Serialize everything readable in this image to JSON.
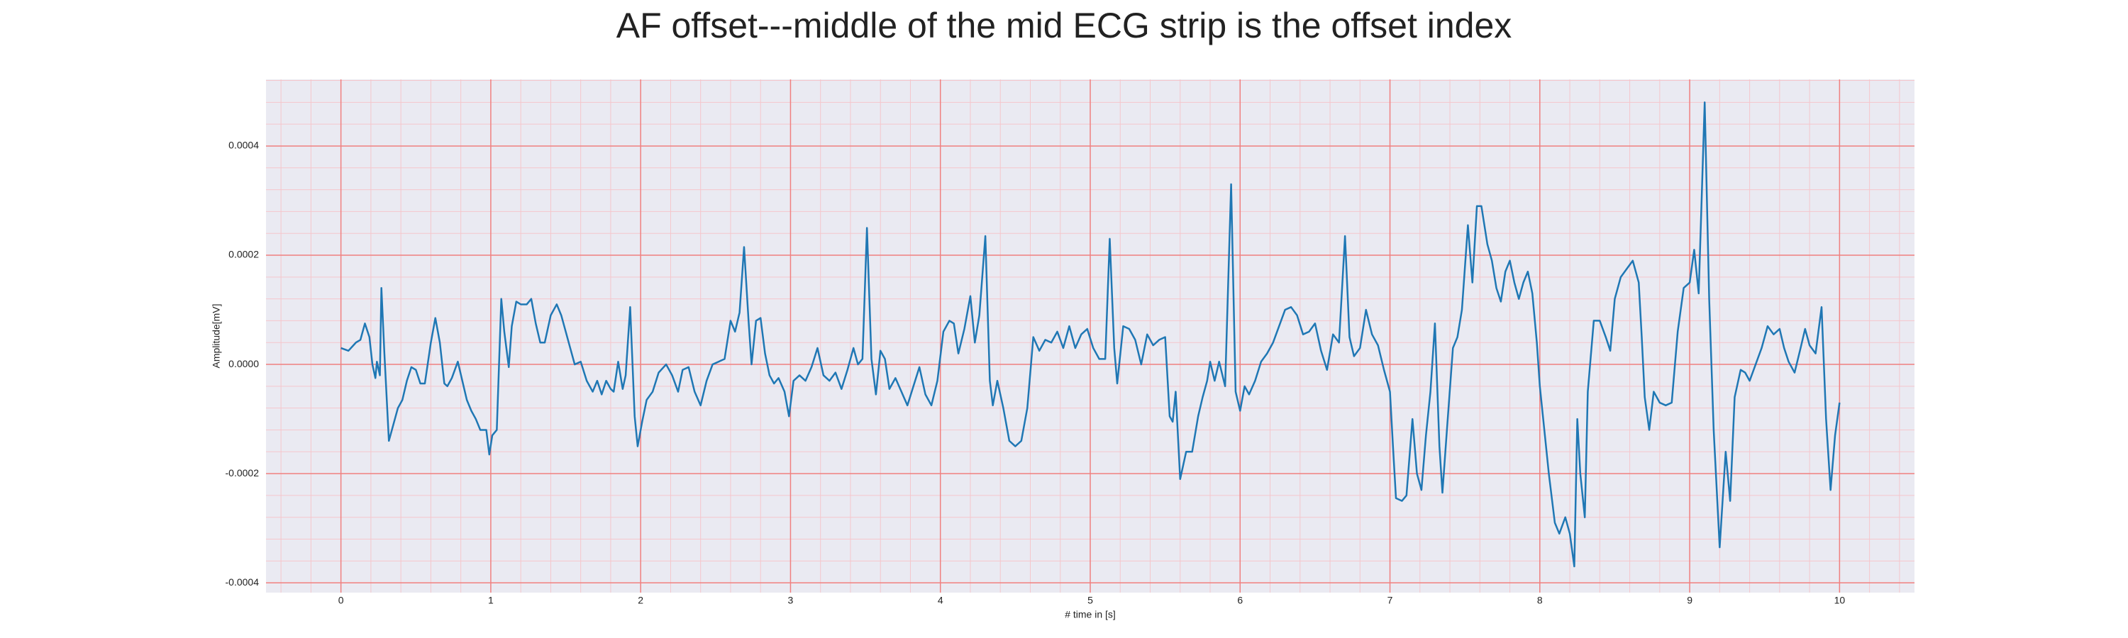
{
  "chart_data": {
    "type": "line",
    "title": "AF offset---middle of the mid ECG strip is the offset index",
    "xlabel": "# time in [s]",
    "ylabel": "Amplitude[mV]",
    "color": "#1f77b4",
    "background": "#eaeaf2",
    "grid": true,
    "grid_color": "#f08080",
    "minor_grid": true,
    "minor_grid_color": "#f5c6cc",
    "xlim": [
      -0.5,
      10.5
    ],
    "ylim": [
      -0.000418,
      0.000522
    ],
    "xticks": [
      0,
      1,
      2,
      3,
      4,
      5,
      6,
      7,
      8,
      9,
      10
    ],
    "yticks": [
      -0.0004,
      -0.0002,
      {
        "value": 0,
        "label": "0.0000"
      },
      0.0002,
      0.0004
    ],
    "x": [
      0.0,
      0.05,
      0.1,
      0.13,
      0.16,
      0.19,
      0.21,
      0.23,
      0.24,
      0.26,
      0.27,
      0.29,
      0.32,
      0.35,
      0.38,
      0.41,
      0.44,
      0.47,
      0.5,
      0.53,
      0.56,
      0.6,
      0.63,
      0.66,
      0.69,
      0.71,
      0.74,
      0.78,
      0.81,
      0.84,
      0.87,
      0.9,
      0.93,
      0.97,
      0.99,
      1.01,
      1.04,
      1.07,
      1.09,
      1.12,
      1.14,
      1.17,
      1.2,
      1.24,
      1.27,
      1.3,
      1.33,
      1.36,
      1.4,
      1.44,
      1.47,
      1.5,
      1.53,
      1.56,
      1.6,
      1.64,
      1.68,
      1.71,
      1.74,
      1.77,
      1.8,
      1.82,
      1.85,
      1.88,
      1.9,
      1.93,
      1.96,
      1.98,
      2.01,
      2.04,
      2.08,
      2.12,
      2.17,
      2.21,
      2.25,
      2.28,
      2.32,
      2.36,
      2.4,
      2.44,
      2.48,
      2.52,
      2.56,
      2.6,
      2.63,
      2.66,
      2.69,
      2.72,
      2.74,
      2.77,
      2.8,
      2.83,
      2.86,
      2.89,
      2.92,
      2.96,
      2.99,
      3.02,
      3.06,
      3.1,
      3.14,
      3.18,
      3.22,
      3.26,
      3.3,
      3.34,
      3.38,
      3.42,
      3.45,
      3.48,
      3.51,
      3.54,
      3.57,
      3.6,
      3.63,
      3.66,
      3.7,
      3.74,
      3.78,
      3.82,
      3.86,
      3.9,
      3.94,
      3.98,
      4.02,
      4.06,
      4.09,
      4.12,
      4.16,
      4.2,
      4.23,
      4.26,
      4.3,
      4.33,
      4.35,
      4.38,
      4.42,
      4.46,
      4.5,
      4.54,
      4.58,
      4.62,
      4.66,
      4.7,
      4.74,
      4.78,
      4.82,
      4.86,
      4.9,
      4.94,
      4.98,
      5.02,
      5.06,
      5.1,
      5.13,
      5.16,
      5.18,
      5.22,
      5.26,
      5.3,
      5.34,
      5.38,
      5.42,
      5.46,
      5.5,
      5.53,
      5.55,
      5.57,
      5.6,
      5.64,
      5.68,
      5.72,
      5.75,
      5.78,
      5.8,
      5.83,
      5.86,
      5.9,
      5.94,
      5.97,
      6.0,
      6.03,
      6.06,
      6.1,
      6.14,
      6.18,
      6.22,
      6.26,
      6.3,
      6.34,
      6.38,
      6.42,
      6.46,
      6.5,
      6.54,
      6.58,
      6.62,
      6.66,
      6.7,
      6.73,
      6.76,
      6.8,
      6.84,
      6.88,
      6.92,
      6.96,
      7.0,
      7.02,
      7.04,
      7.08,
      7.11,
      7.15,
      7.18,
      7.21,
      7.24,
      7.27,
      7.3,
      7.33,
      7.35,
      7.38,
      7.42,
      7.45,
      7.48,
      7.52,
      7.55,
      7.58,
      7.61,
      7.65,
      7.68,
      7.71,
      7.74,
      7.77,
      7.8,
      7.83,
      7.86,
      7.89,
      7.92,
      7.95,
      7.98,
      8.0,
      8.03,
      8.06,
      8.1,
      8.13,
      8.17,
      8.2,
      8.23,
      8.25,
      8.27,
      8.3,
      8.32,
      8.36,
      8.4,
      8.44,
      8.47,
      8.5,
      8.54,
      8.58,
      8.62,
      8.66,
      8.68,
      8.7,
      8.73,
      8.76,
      8.8,
      8.84,
      8.88,
      8.92,
      8.96,
      9.0,
      9.03,
      9.06,
      9.1,
      9.13,
      9.16,
      9.2,
      9.24,
      9.27,
      9.3,
      9.34,
      9.37,
      9.4,
      9.44,
      9.48,
      9.52,
      9.56,
      9.6,
      9.63,
      9.66,
      9.7,
      9.74,
      9.77,
      9.8,
      9.84,
      9.88,
      9.91,
      9.94,
      9.97,
      10.0
    ],
    "values": [
      3e-05,
      2.5e-05,
      4e-05,
      4.5e-05,
      7.5e-05,
      5e-05,
      0.0,
      -2.5e-05,
      5e-06,
      -2e-05,
      0.00014,
      2e-05,
      -0.00014,
      -0.00011,
      -8e-05,
      -6.5e-05,
      -3e-05,
      -5e-06,
      -1e-05,
      -3.5e-05,
      -3.5e-05,
      4e-05,
      8.5e-05,
      4e-05,
      -3.5e-05,
      -4e-05,
      -2.5e-05,
      5e-06,
      -3e-05,
      -6.5e-05,
      -8.5e-05,
      -0.0001,
      -0.00012,
      -0.00012,
      -0.000165,
      -0.00013,
      -0.00012,
      0.00012,
      6e-05,
      -5e-06,
      7e-05,
      0.000115,
      0.00011,
      0.00011,
      0.00012,
      7.5e-05,
      4e-05,
      4e-05,
      9e-05,
      0.00011,
      9e-05,
      6e-05,
      3e-05,
      0.0,
      5e-06,
      -3e-05,
      -5e-05,
      -3e-05,
      -5.5e-05,
      -3e-05,
      -4.5e-05,
      -5e-05,
      5e-06,
      -4.5e-05,
      -2e-05,
      0.000105,
      -9.5e-05,
      -0.00015,
      -0.000105,
      -6.5e-05,
      -5e-05,
      -1.5e-05,
      0.0,
      -2e-05,
      -5e-05,
      -1e-05,
      -5e-06,
      -5e-05,
      -7.5e-05,
      -3e-05,
      0.0,
      5e-06,
      1e-05,
      8e-05,
      6e-05,
      9.5e-05,
      0.000215,
      8e-05,
      0.0,
      8e-05,
      8.5e-05,
      2e-05,
      -2e-05,
      -3.5e-05,
      -2.5e-05,
      -5e-05,
      -9.5e-05,
      -3e-05,
      -2e-05,
      -3e-05,
      -5e-06,
      3e-05,
      -2e-05,
      -3e-05,
      -1.5e-05,
      -4.5e-05,
      -1e-05,
      3e-05,
      0.0,
      1e-05,
      0.00025,
      1e-05,
      -5.5e-05,
      2.5e-05,
      1e-05,
      -4.5e-05,
      -2.5e-05,
      -5e-05,
      -7.5e-05,
      -4e-05,
      -5e-06,
      -5.5e-05,
      -7.5e-05,
      -3e-05,
      6e-05,
      8e-05,
      7.5e-05,
      2e-05,
      6.5e-05,
      0.000125,
      4e-05,
      9e-05,
      0.000235,
      -3e-05,
      -7.5e-05,
      -3e-05,
      -8e-05,
      -0.00014,
      -0.00015,
      -0.00014,
      -8e-05,
      5e-05,
      2.5e-05,
      4.5e-05,
      4e-05,
      6e-05,
      3e-05,
      7e-05,
      3e-05,
      5.5e-05,
      6.5e-05,
      3e-05,
      1e-05,
      1e-05,
      0.00023,
      3e-05,
      -3.5e-05,
      7e-05,
      6.5e-05,
      4.5e-05,
      0.0,
      5.5e-05,
      3.5e-05,
      4.5e-05,
      5e-05,
      -9.5e-05,
      -0.000105,
      -5e-05,
      -0.00021,
      -0.00016,
      -0.00016,
      -9.5e-05,
      -6e-05,
      -3e-05,
      5e-06,
      -3e-05,
      5e-06,
      -4e-05,
      0.00033,
      -5e-05,
      -8.5e-05,
      -4e-05,
      -5.5e-05,
      -3e-05,
      5e-06,
      2e-05,
      4e-05,
      7e-05,
      0.0001,
      0.000105,
      9e-05,
      5.5e-05,
      6e-05,
      7.5e-05,
      2.5e-05,
      -1e-05,
      5.5e-05,
      4e-05,
      0.000235,
      5e-05,
      1.5e-05,
      3e-05,
      0.0001,
      5.5e-05,
      3.5e-05,
      -1e-05,
      -5e-05,
      -0.00015,
      -0.000245,
      -0.00025,
      -0.00024,
      -0.0001,
      -0.0002,
      -0.00023,
      -0.00013,
      -5e-05,
      7.5e-05,
      -0.00015,
      -0.000235,
      -0.00012,
      3e-05,
      5e-05,
      0.0001,
      0.000255,
      0.00015,
      0.00029,
      0.00029,
      0.00022,
      0.00019,
      0.00014,
      0.000115,
      0.00017,
      0.00019,
      0.00015,
      0.00012,
      0.00015,
      0.00017,
      0.00013,
      4e-05,
      -4e-05,
      -0.00012,
      -0.0002,
      -0.00029,
      -0.00031,
      -0.00028,
      -0.00031,
      -0.00037,
      -0.0001,
      -0.0002,
      -0.00028,
      -5e-05,
      8e-05,
      8e-05,
      5e-05,
      2.5e-05,
      0.00012,
      0.00016,
      0.000175,
      0.00019,
      0.00015,
      5e-05,
      -6e-05,
      -0.00012,
      -5e-05,
      -7e-05,
      -7.5e-05,
      -7e-05,
      6e-05,
      0.00014,
      0.00015,
      0.00021,
      0.00013,
      0.00048,
      0.00012,
      -0.00012,
      -0.000335,
      -0.00016,
      -0.00025,
      -6e-05,
      -1e-05,
      -1.5e-05,
      -3e-05,
      0.0,
      3e-05,
      7e-05,
      5.5e-05,
      6.5e-05,
      3e-05,
      5e-06,
      -1.5e-05,
      3e-05,
      6.5e-05,
      3.5e-05,
      2e-05,
      0.000105,
      -0.0001,
      -0.00023,
      -0.00013,
      -7e-05
    ]
  }
}
